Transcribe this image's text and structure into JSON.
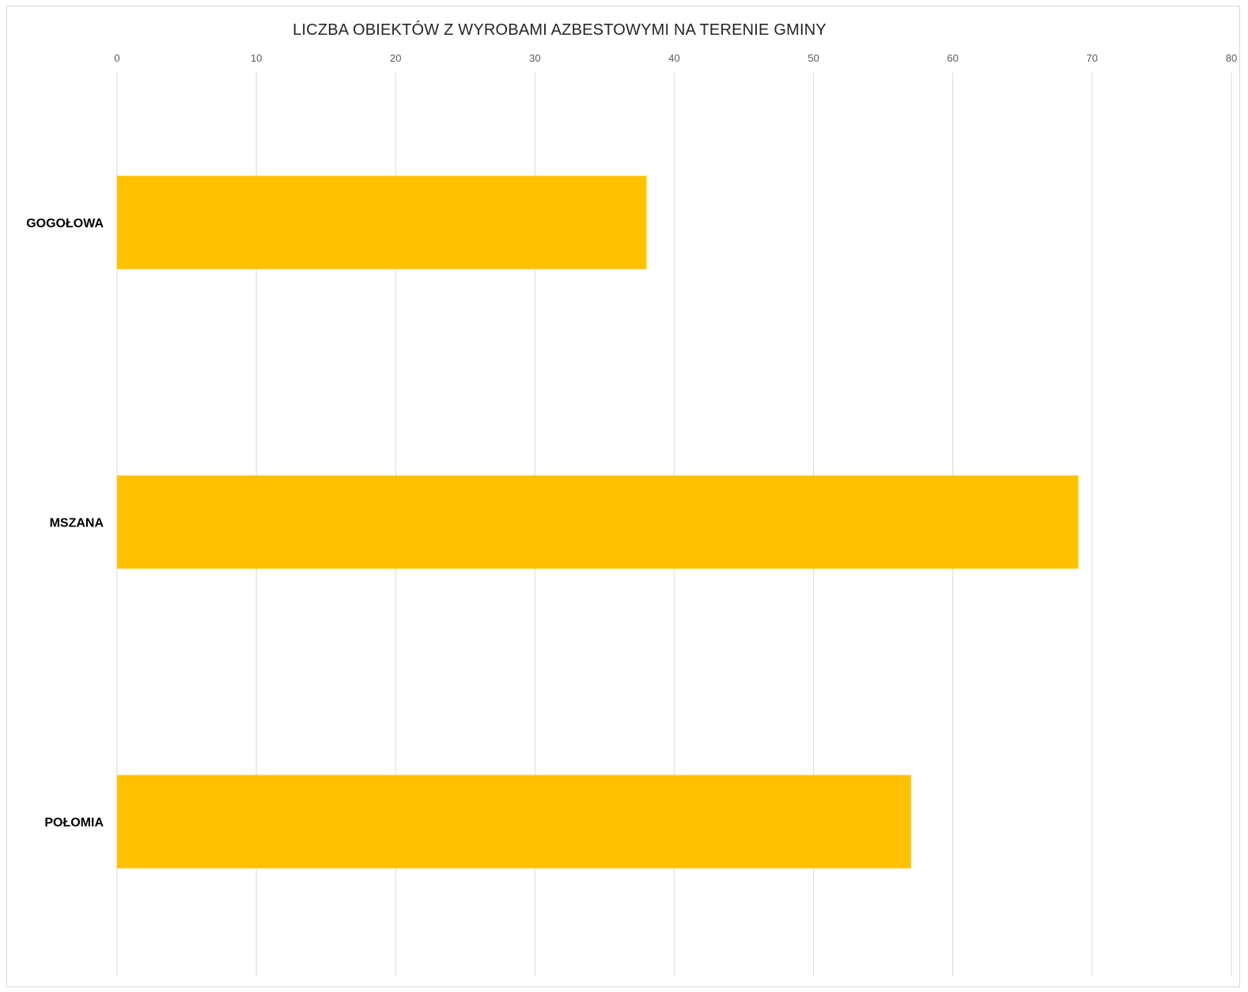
{
  "chart_data": {
    "type": "bar",
    "orientation": "horizontal",
    "title": "LICZBA OBIEKTÓW Z WYROBAMI AZBESTOWYMI NA TERENIE GMINY",
    "categories": [
      "GOGOŁOWA",
      "MSZANA",
      "POŁOMIA"
    ],
    "values": [
      38,
      69,
      57
    ],
    "xlim": [
      0,
      80
    ],
    "xticks": [
      "0",
      "10",
      "20",
      "30",
      "40",
      "50",
      "60",
      "70",
      "80"
    ],
    "xaxis_position": "top",
    "grid": true,
    "legend": "none",
    "bar_color": "#FFC000",
    "grid_color": "#d9d9d9"
  }
}
